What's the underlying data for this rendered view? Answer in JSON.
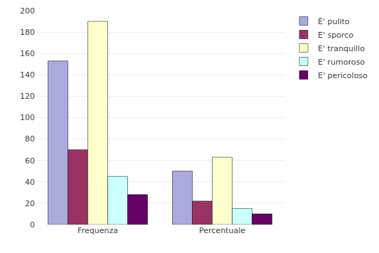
{
  "chart_data": {
    "type": "bar",
    "categories": [
      "Frequenza",
      "Percentuale"
    ],
    "series": [
      {
        "name": "È' pulito",
        "color": "#aaaadd",
        "values": [
          153,
          50
        ]
      },
      {
        "name": "E' sporco",
        "color": "#993366",
        "values": [
          70,
          22
        ]
      },
      {
        "name": "E' tranquillo",
        "color": "#ffffcc",
        "values": [
          190,
          63
        ]
      },
      {
        "name": "E' rumoroso",
        "color": "#ccffff",
        "values": [
          45,
          15
        ]
      },
      {
        "name": "E' pericoloso",
        "color": "#660066",
        "values": [
          28,
          10
        ]
      }
    ],
    "ylim": [
      0,
      200
    ],
    "yticks": [
      0,
      20,
      40,
      60,
      80,
      100,
      120,
      140,
      160,
      180,
      200
    ],
    "grid": true,
    "legend": "upper right"
  }
}
